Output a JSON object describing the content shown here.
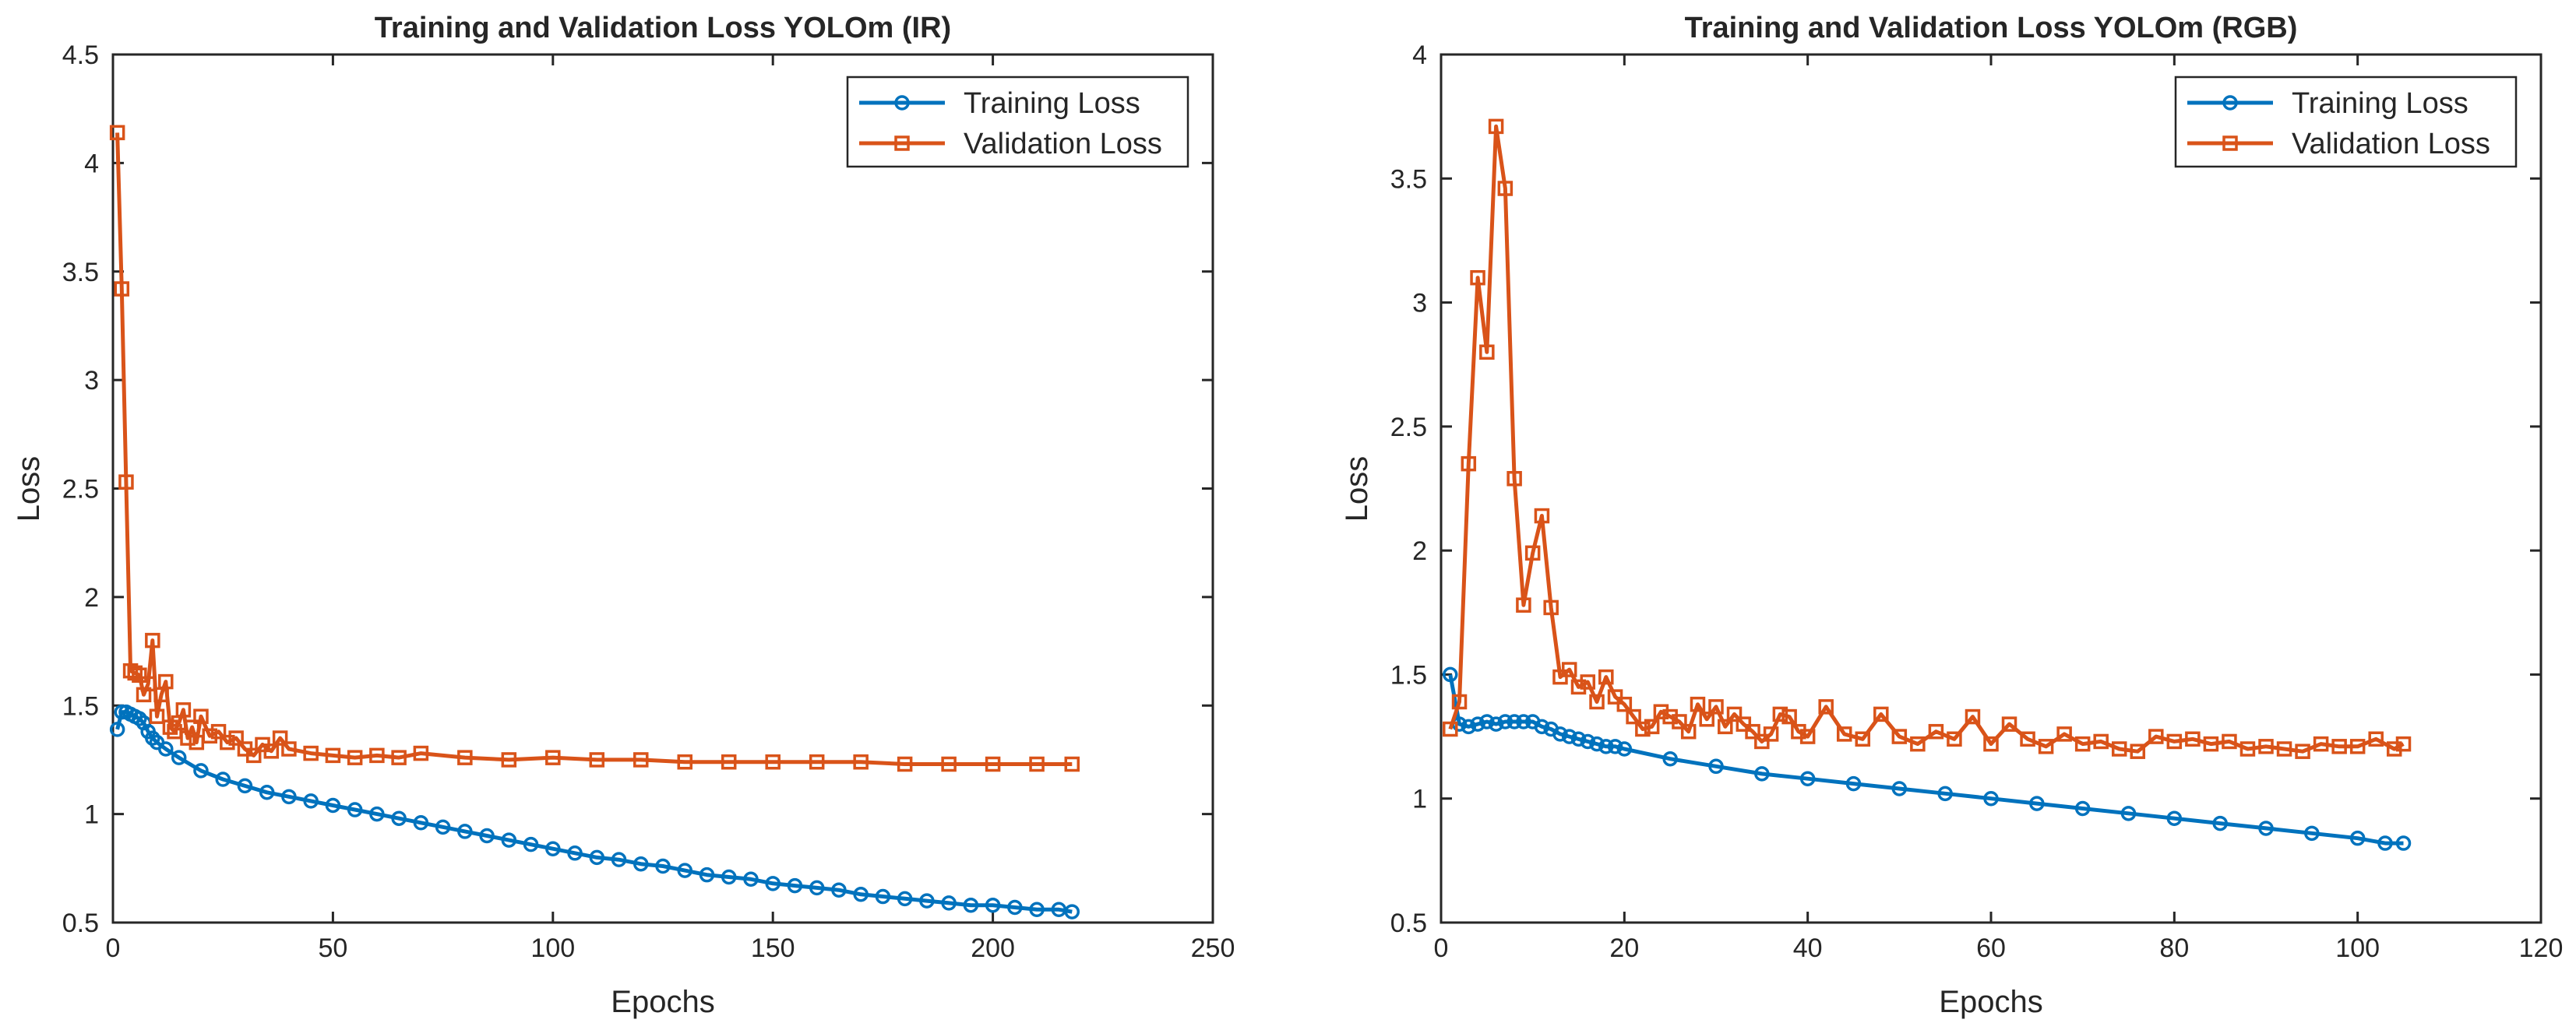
{
  "colors": {
    "training": "#0072BD",
    "validation": "#D95319",
    "axis": "#262626"
  },
  "chart_data": [
    {
      "type": "line",
      "title": "Training and Validation Loss YOLOm (IR)",
      "xlabel": "Epochs",
      "ylabel": "Loss",
      "xlim": [
        0,
        250
      ],
      "ylim": [
        0.5,
        4.5
      ],
      "xticks": [
        0,
        50,
        100,
        150,
        200,
        250
      ],
      "yticks": [
        0.5,
        1,
        1.5,
        2,
        2.5,
        3,
        3.5,
        4,
        4.5
      ],
      "xtick_labels": [
        "0",
        "50",
        "100",
        "150",
        "200",
        "250"
      ],
      "ytick_labels": [
        "0.5",
        "1",
        "1.5",
        "2",
        "2.5",
        "3",
        "3.5",
        "4",
        "4.5"
      ],
      "legend": [
        "Training Loss",
        "Validation Loss"
      ],
      "legend_position": "top-right",
      "series": [
        {
          "name": "Training Loss",
          "marker": "circle",
          "x": [
            1,
            2,
            3,
            4,
            5,
            6,
            7,
            8,
            9,
            10,
            12,
            15,
            20,
            25,
            30,
            35,
            40,
            45,
            50,
            55,
            60,
            65,
            70,
            75,
            80,
            85,
            90,
            95,
            100,
            105,
            110,
            115,
            120,
            125,
            130,
            135,
            140,
            145,
            150,
            155,
            160,
            165,
            170,
            175,
            180,
            185,
            190,
            195,
            200,
            205,
            210,
            215,
            218
          ],
          "y": [
            1.39,
            1.47,
            1.47,
            1.46,
            1.45,
            1.44,
            1.42,
            1.38,
            1.35,
            1.33,
            1.3,
            1.26,
            1.2,
            1.16,
            1.13,
            1.1,
            1.08,
            1.06,
            1.04,
            1.02,
            1.0,
            0.98,
            0.96,
            0.94,
            0.92,
            0.9,
            0.88,
            0.86,
            0.84,
            0.82,
            0.8,
            0.79,
            0.77,
            0.76,
            0.74,
            0.72,
            0.71,
            0.7,
            0.68,
            0.67,
            0.66,
            0.65,
            0.63,
            0.62,
            0.61,
            0.6,
            0.59,
            0.58,
            0.58,
            0.57,
            0.56,
            0.56,
            0.55
          ]
        },
        {
          "name": "Validation Loss",
          "marker": "square",
          "x": [
            1,
            2,
            3,
            4,
            5,
            6,
            7,
            8,
            9,
            10,
            11,
            12,
            13,
            14,
            15,
            16,
            17,
            18,
            19,
            20,
            22,
            24,
            26,
            28,
            30,
            32,
            34,
            36,
            38,
            40,
            45,
            50,
            55,
            60,
            65,
            70,
            80,
            90,
            100,
            110,
            120,
            130,
            140,
            150,
            160,
            170,
            180,
            190,
            200,
            210,
            218
          ],
          "y": [
            4.14,
            3.42,
            2.53,
            1.66,
            1.65,
            1.64,
            1.55,
            1.6,
            1.8,
            1.45,
            1.55,
            1.61,
            1.4,
            1.38,
            1.42,
            1.48,
            1.35,
            1.4,
            1.33,
            1.45,
            1.36,
            1.38,
            1.33,
            1.35,
            1.3,
            1.27,
            1.32,
            1.29,
            1.35,
            1.3,
            1.28,
            1.27,
            1.26,
            1.27,
            1.26,
            1.28,
            1.26,
            1.25,
            1.26,
            1.25,
            1.25,
            1.24,
            1.24,
            1.24,
            1.24,
            1.24,
            1.23,
            1.23,
            1.23,
            1.23,
            1.23
          ]
        }
      ]
    },
    {
      "type": "line",
      "title": "Training and Validation Loss YOLOm (RGB)",
      "xlabel": "Epochs",
      "ylabel": "Loss",
      "xlim": [
        0,
        120
      ],
      "ylim": [
        0.5,
        4
      ],
      "xticks": [
        0,
        20,
        40,
        60,
        80,
        100,
        120
      ],
      "yticks": [
        0.5,
        1,
        1.5,
        2,
        2.5,
        3,
        3.5,
        4
      ],
      "xtick_labels": [
        "0",
        "20",
        "40",
        "60",
        "80",
        "100",
        "120"
      ],
      "ytick_labels": [
        "0.5",
        "1",
        "1.5",
        "2",
        "2.5",
        "3",
        "3.5",
        "4"
      ],
      "legend": [
        "Training Loss",
        "Validation Loss"
      ],
      "legend_position": "top-right",
      "series": [
        {
          "name": "Training Loss",
          "marker": "circle",
          "x": [
            1,
            2,
            3,
            4,
            5,
            6,
            7,
            8,
            9,
            10,
            11,
            12,
            13,
            14,
            15,
            16,
            17,
            18,
            19,
            20,
            25,
            30,
            35,
            40,
            45,
            50,
            55,
            60,
            65,
            70,
            75,
            80,
            85,
            90,
            95,
            100,
            103,
            105
          ],
          "y": [
            1.5,
            1.3,
            1.29,
            1.3,
            1.31,
            1.3,
            1.31,
            1.31,
            1.31,
            1.31,
            1.29,
            1.28,
            1.26,
            1.25,
            1.24,
            1.23,
            1.22,
            1.21,
            1.21,
            1.2,
            1.16,
            1.13,
            1.1,
            1.08,
            1.06,
            1.04,
            1.02,
            1.0,
            0.98,
            0.96,
            0.94,
            0.92,
            0.9,
            0.88,
            0.86,
            0.84,
            0.82,
            0.82
          ]
        },
        {
          "name": "Validation Loss",
          "marker": "square",
          "x": [
            1,
            2,
            3,
            4,
            5,
            6,
            7,
            8,
            9,
            10,
            11,
            12,
            13,
            14,
            15,
            16,
            17,
            18,
            19,
            20,
            21,
            22,
            23,
            24,
            25,
            26,
            27,
            28,
            29,
            30,
            31,
            32,
            33,
            34,
            35,
            36,
            37,
            38,
            39,
            40,
            42,
            44,
            46,
            48,
            50,
            52,
            54,
            56,
            58,
            60,
            62,
            64,
            66,
            68,
            70,
            72,
            74,
            76,
            78,
            80,
            82,
            84,
            86,
            88,
            90,
            92,
            94,
            96,
            98,
            100,
            102,
            104,
            105
          ],
          "y": [
            1.28,
            1.39,
            2.35,
            3.1,
            2.8,
            3.71,
            3.46,
            2.29,
            1.78,
            1.99,
            2.14,
            1.77,
            1.49,
            1.52,
            1.45,
            1.47,
            1.39,
            1.49,
            1.41,
            1.38,
            1.33,
            1.28,
            1.29,
            1.35,
            1.33,
            1.31,
            1.27,
            1.38,
            1.32,
            1.37,
            1.29,
            1.34,
            1.3,
            1.27,
            1.23,
            1.26,
            1.34,
            1.33,
            1.27,
            1.25,
            1.37,
            1.26,
            1.24,
            1.34,
            1.25,
            1.22,
            1.27,
            1.24,
            1.33,
            1.22,
            1.3,
            1.24,
            1.21,
            1.26,
            1.22,
            1.23,
            1.2,
            1.19,
            1.25,
            1.23,
            1.24,
            1.22,
            1.23,
            1.2,
            1.21,
            1.2,
            1.19,
            1.22,
            1.21,
            1.21,
            1.24,
            1.2,
            1.22
          ]
        }
      ]
    }
  ]
}
